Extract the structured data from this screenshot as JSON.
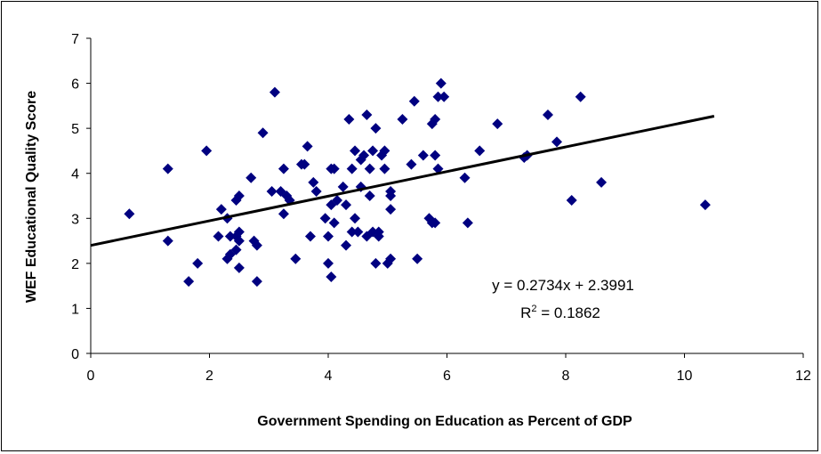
{
  "chart_data": {
    "type": "scatter",
    "xlabel": "Government Spending on Education as Percent of GDP",
    "ylabel": "WEF Educational Quality Score",
    "xlim": [
      0,
      12
    ],
    "ylim": [
      0,
      7
    ],
    "x_ticks": [
      "0",
      "2",
      "4",
      "6",
      "8",
      "10",
      "12"
    ],
    "y_ticks": [
      "0",
      "1",
      "2",
      "3",
      "4",
      "5",
      "6",
      "7"
    ],
    "grid": false,
    "marker_color": "#000080",
    "trendline": {
      "type": "linear",
      "slope": 0.2734,
      "intercept": 2.3991,
      "x_range": [
        0,
        10.5
      ],
      "equation_label": "y = 0.2734x + 2.3991",
      "r2_label": "R",
      "r2_sup": "2",
      "r2_value": " = 0.1862"
    },
    "points": [
      [
        0.65,
        3.1
      ],
      [
        1.3,
        4.1
      ],
      [
        1.3,
        2.5
      ],
      [
        1.65,
        1.6
      ],
      [
        1.8,
        2.0
      ],
      [
        1.95,
        4.5
      ],
      [
        2.15,
        2.6
      ],
      [
        2.2,
        3.2
      ],
      [
        2.3,
        2.1
      ],
      [
        2.3,
        3.0
      ],
      [
        2.35,
        2.6
      ],
      [
        2.35,
        2.2
      ],
      [
        2.45,
        2.3
      ],
      [
        2.45,
        2.6
      ],
      [
        2.45,
        3.4
      ],
      [
        2.5,
        1.9
      ],
      [
        2.5,
        3.5
      ],
      [
        2.5,
        2.5
      ],
      [
        2.5,
        2.7
      ],
      [
        2.7,
        3.9
      ],
      [
        2.75,
        2.5
      ],
      [
        2.8,
        1.6
      ],
      [
        2.8,
        2.4
      ],
      [
        2.9,
        4.9
      ],
      [
        3.05,
        3.6
      ],
      [
        3.1,
        5.8
      ],
      [
        3.2,
        3.6
      ],
      [
        3.25,
        4.1
      ],
      [
        3.25,
        3.1
      ],
      [
        3.3,
        3.5
      ],
      [
        3.35,
        3.4
      ],
      [
        3.45,
        2.1
      ],
      [
        3.55,
        4.2
      ],
      [
        3.6,
        4.2
      ],
      [
        3.65,
        4.6
      ],
      [
        3.7,
        2.6
      ],
      [
        3.75,
        3.8
      ],
      [
        3.8,
        3.6
      ],
      [
        3.95,
        3.0
      ],
      [
        4.0,
        2.0
      ],
      [
        4.0,
        2.6
      ],
      [
        4.05,
        1.7
      ],
      [
        4.05,
        3.3
      ],
      [
        4.05,
        4.1
      ],
      [
        4.1,
        4.1
      ],
      [
        4.1,
        2.9
      ],
      [
        4.15,
        3.4
      ],
      [
        4.25,
        3.7
      ],
      [
        4.3,
        3.3
      ],
      [
        4.3,
        2.4
      ],
      [
        4.35,
        5.2
      ],
      [
        4.4,
        2.7
      ],
      [
        4.4,
        4.1
      ],
      [
        4.45,
        3.0
      ],
      [
        4.45,
        4.5
      ],
      [
        4.5,
        2.7
      ],
      [
        4.55,
        4.3
      ],
      [
        4.55,
        3.7
      ],
      [
        4.6,
        4.4
      ],
      [
        4.65,
        5.3
      ],
      [
        4.65,
        2.6
      ],
      [
        4.7,
        3.5
      ],
      [
        4.7,
        4.1
      ],
      [
        4.75,
        4.5
      ],
      [
        4.75,
        2.7
      ],
      [
        4.8,
        2.0
      ],
      [
        4.8,
        5.0
      ],
      [
        4.85,
        2.6
      ],
      [
        4.85,
        2.7
      ],
      [
        4.9,
        4.4
      ],
      [
        4.95,
        4.1
      ],
      [
        4.95,
        4.5
      ],
      [
        5.0,
        2.0
      ],
      [
        5.05,
        2.1
      ],
      [
        5.05,
        3.6
      ],
      [
        5.05,
        3.5
      ],
      [
        5.05,
        3.2
      ],
      [
        5.25,
        5.2
      ],
      [
        5.4,
        4.2
      ],
      [
        5.45,
        5.6
      ],
      [
        5.5,
        2.1
      ],
      [
        5.6,
        4.4
      ],
      [
        5.7,
        3.0
      ],
      [
        5.75,
        2.9
      ],
      [
        5.75,
        5.1
      ],
      [
        5.8,
        4.4
      ],
      [
        5.8,
        5.2
      ],
      [
        5.8,
        2.9
      ],
      [
        5.85,
        4.1
      ],
      [
        5.85,
        5.7
      ],
      [
        5.9,
        6.0
      ],
      [
        5.95,
        5.7
      ],
      [
        6.3,
        3.9
      ],
      [
        6.35,
        2.9
      ],
      [
        6.55,
        4.5
      ],
      [
        6.85,
        5.1
      ],
      [
        7.3,
        4.35
      ],
      [
        7.35,
        4.4
      ],
      [
        7.7,
        5.3
      ],
      [
        7.85,
        4.7
      ],
      [
        8.1,
        3.4
      ],
      [
        8.25,
        5.7
      ],
      [
        8.6,
        3.8
      ],
      [
        10.35,
        3.3
      ]
    ]
  }
}
